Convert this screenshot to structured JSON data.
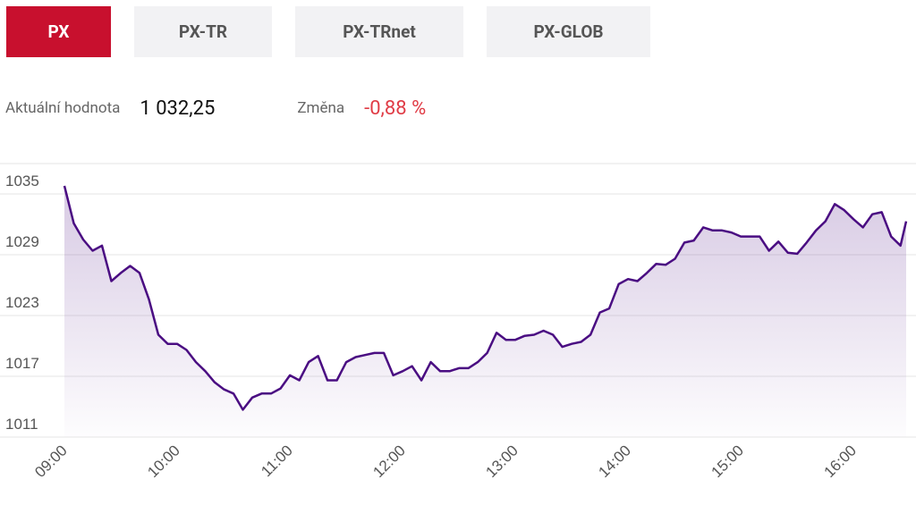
{
  "tabs": [
    "PX",
    "PX-TR",
    "PX-TRnet",
    "PX-GLOB"
  ],
  "stats": {
    "current_label": "Aktuální hodnota",
    "current_value": "1 032,25",
    "change_label": "Změna",
    "change_value": "-0,88 %"
  },
  "chart_data": {
    "type": "line",
    "x": [
      "09:00",
      "09:05",
      "09:10",
      "09:15",
      "09:20",
      "09:25",
      "09:30",
      "09:35",
      "09:40",
      "09:45",
      "09:50",
      "09:55",
      "10:00",
      "10:05",
      "10:10",
      "10:15",
      "10:20",
      "10:25",
      "10:30",
      "10:35",
      "10:40",
      "10:45",
      "10:50",
      "10:55",
      "11:00",
      "11:05",
      "11:10",
      "11:15",
      "11:20",
      "11:25",
      "11:30",
      "11:35",
      "11:40",
      "11:45",
      "11:50",
      "11:55",
      "12:00",
      "12:05",
      "12:10",
      "12:15",
      "12:20",
      "12:25",
      "12:30",
      "12:35",
      "12:40",
      "12:45",
      "12:50",
      "12:55",
      "13:00",
      "13:05",
      "13:10",
      "13:15",
      "13:20",
      "13:25",
      "13:30",
      "13:35",
      "13:40",
      "13:45",
      "13:50",
      "13:55",
      "14:00",
      "14:05",
      "14:10",
      "14:15",
      "14:20",
      "14:25",
      "14:30",
      "14:35",
      "14:40",
      "14:45",
      "14:50",
      "14:55",
      "15:00",
      "15:05",
      "15:10",
      "15:15",
      "15:20",
      "15:25",
      "15:30",
      "15:35",
      "15:40",
      "15:45",
      "15:50",
      "15:55",
      "16:00",
      "16:05",
      "16:10",
      "16:15",
      "16:20",
      "16:25",
      "16:28"
    ],
    "values": [
      1035.8,
      1032.1,
      1030.5,
      1029.4,
      1029.9,
      1026.4,
      1027.2,
      1027.9,
      1027.2,
      1024.6,
      1021.1,
      1020.2,
      1020.2,
      1019.6,
      1018.4,
      1017.5,
      1016.4,
      1015.7,
      1015.3,
      1013.7,
      1014.9,
      1015.3,
      1015.3,
      1015.8,
      1017.1,
      1016.6,
      1018.4,
      1019.0,
      1016.6,
      1016.6,
      1018.4,
      1018.9,
      1019.1,
      1019.3,
      1019.3,
      1017.1,
      1017.5,
      1018.0,
      1016.6,
      1018.4,
      1017.5,
      1017.5,
      1017.8,
      1017.8,
      1018.4,
      1019.3,
      1021.3,
      1020.6,
      1020.6,
      1021.0,
      1021.1,
      1021.5,
      1021.1,
      1019.9,
      1020.2,
      1020.4,
      1021.1,
      1023.3,
      1023.7,
      1026.1,
      1026.6,
      1026.4,
      1027.2,
      1028.1,
      1028.0,
      1028.6,
      1030.2,
      1030.4,
      1031.7,
      1031.4,
      1031.4,
      1031.2,
      1030.8,
      1030.8,
      1030.8,
      1029.4,
      1030.3,
      1029.2,
      1029.1,
      1030.2,
      1031.4,
      1032.3,
      1034.0,
      1033.4,
      1032.5,
      1031.7,
      1033.0,
      1033.2,
      1030.8,
      1029.9,
      1032.3
    ],
    "color": "#4a0d82",
    "xlim": [
      "09:00",
      "16:28"
    ],
    "xticks": [
      "09:00",
      "10:00",
      "11:00",
      "12:00",
      "13:00",
      "14:00",
      "15:00",
      "16:00"
    ],
    "ylim": [
      1011,
      1038
    ],
    "yticks": [
      1011,
      1017,
      1023,
      1029,
      1035
    ],
    "grid": true
  }
}
